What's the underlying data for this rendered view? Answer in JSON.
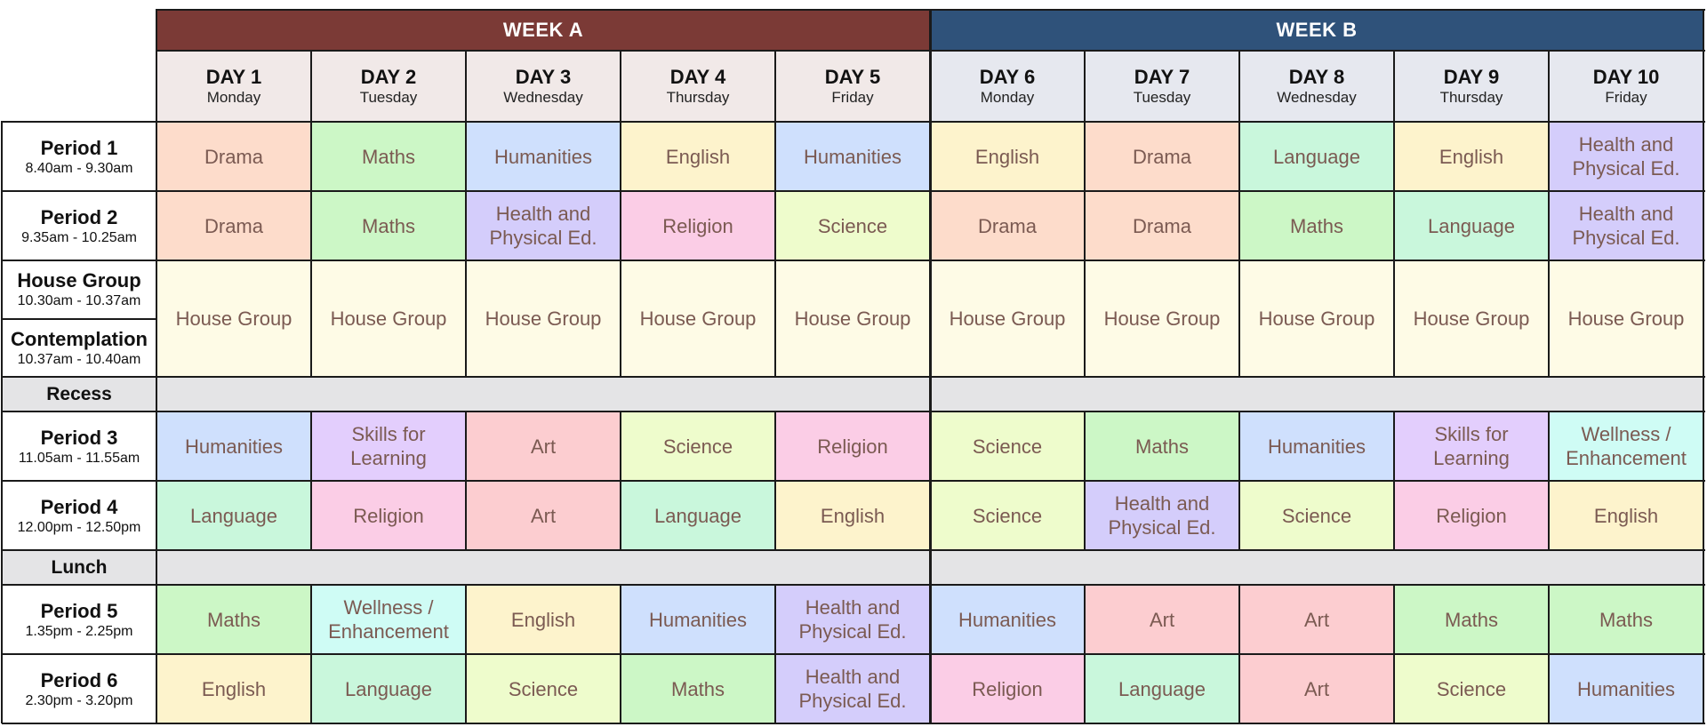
{
  "weeks": [
    {
      "label": "WEEK A",
      "color": "#7b3a36"
    },
    {
      "label": "WEEK B",
      "color": "#2f527a"
    }
  ],
  "days": [
    {
      "title": "DAY 1",
      "weekday": "Monday"
    },
    {
      "title": "DAY 2",
      "weekday": "Tuesday"
    },
    {
      "title": "DAY 3",
      "weekday": "Wednesday"
    },
    {
      "title": "DAY 4",
      "weekday": "Thursday"
    },
    {
      "title": "DAY 5",
      "weekday": "Friday"
    },
    {
      "title": "DAY 6",
      "weekday": "Monday"
    },
    {
      "title": "DAY 7",
      "weekday": "Tuesday"
    },
    {
      "title": "DAY 8",
      "weekday": "Wednesday"
    },
    {
      "title": "DAY 9",
      "weekday": "Thursday"
    },
    {
      "title": "DAY 10",
      "weekday": "Friday"
    }
  ],
  "day_header_colors": {
    "week_a": "#f1e9e8",
    "week_b": "#e6e8ef"
  },
  "subject_colors": {
    "Drama": "#fddccb",
    "Maths": "#ccf7c6",
    "Humanities": "#cfe0fd",
    "English": "#fdf3cc",
    "Language": "#c9f7dc",
    "Health and Physical Ed.": "#d4cdfb",
    "Religion": "#fbcde6",
    "Science": "#eefccc",
    "House Group": "#fefbe6",
    "Skills for Learning": "#e3cefd",
    "Art": "#fccdd0",
    "Wellness / Enhancement": "#cffcf5"
  },
  "break_color": "#e4e4e6",
  "periods": [
    {
      "name": "Period 1",
      "time": "8.40am - 9.30am",
      "subjects": [
        "Drama",
        "Maths",
        "Humanities",
        "English",
        "Humanities",
        "English",
        "Drama",
        "Language",
        "English",
        "Health and Physical Ed."
      ]
    },
    {
      "name": "Period 2",
      "time": "9.35am - 10.25am",
      "subjects": [
        "Drama",
        "Maths",
        "Health and Physical Ed.",
        "Religion",
        "Science",
        "Drama",
        "Drama",
        "Maths",
        "Language",
        "Health and Physical Ed."
      ]
    },
    {
      "name": "House Group",
      "time": "10.30am - 10.37am",
      "name2": "Contemplation",
      "time2": "10.37am - 10.40am",
      "subjects": [
        "House Group",
        "House Group",
        "House Group",
        "House Group",
        "House Group",
        "House Group",
        "House Group",
        "House Group",
        "House Group",
        "House Group"
      ]
    },
    {
      "name": "Recess",
      "is_break": true
    },
    {
      "name": "Period 3",
      "time": "11.05am - 11.55am",
      "subjects": [
        "Humanities",
        "Skills for Learning",
        "Art",
        "Science",
        "Religion",
        "Science",
        "Maths",
        "Humanities",
        "Skills for Learning",
        "Wellness / Enhancement"
      ]
    },
    {
      "name": "Period 4",
      "time": "12.00pm - 12.50pm",
      "subjects": [
        "Language",
        "Religion",
        "Art",
        "Language",
        "English",
        "Science",
        "Health and Physical Ed.",
        "Science",
        "Religion",
        "English"
      ]
    },
    {
      "name": "Lunch",
      "is_break": true
    },
    {
      "name": "Period 5",
      "time": "1.35pm - 2.25pm",
      "subjects": [
        "Maths",
        "Wellness / Enhancement",
        "English",
        "Humanities",
        "Health and Physical Ed.",
        "Humanities",
        "Art",
        "Art",
        "Maths",
        "Maths"
      ]
    },
    {
      "name": "Period 6",
      "time": "2.30pm - 3.20pm",
      "subjects": [
        "English",
        "Language",
        "Science",
        "Maths",
        "Health and Physical Ed.",
        "Religion",
        "Language",
        "Art",
        "Science",
        "Humanities"
      ]
    }
  ]
}
